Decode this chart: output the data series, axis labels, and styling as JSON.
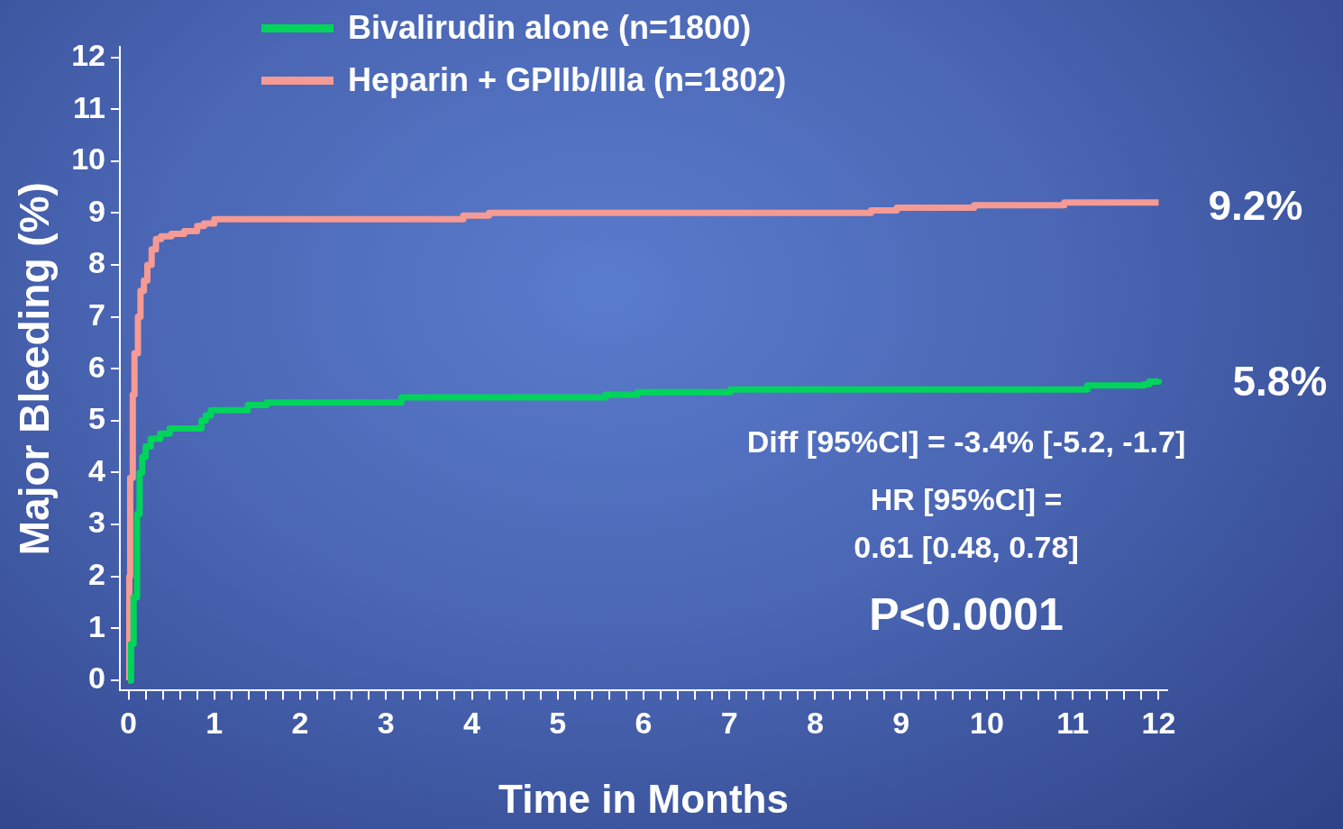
{
  "chart_data": {
    "type": "step",
    "xlabel": "Time in Months",
    "ylabel": "Major Bleeding (%)",
    "legend": "top left",
    "marker": "none",
    "line_style": "solid",
    "grid": false,
    "xlim": [
      -0.1,
      12.1
    ],
    "ylim": [
      -0.2,
      12.2
    ],
    "yticks": [
      0,
      1,
      2,
      3,
      4,
      5,
      6,
      7,
      8,
      9,
      10,
      11,
      12
    ],
    "xticks": [
      0,
      {
        "value": 0.2,
        "label": null
      },
      {
        "value": 0.4,
        "label": null
      },
      {
        "value": 0.6,
        "label": null
      },
      {
        "value": 0.8,
        "label": null
      },
      1,
      {
        "value": 1.2,
        "label": null
      },
      {
        "value": 1.4,
        "label": null
      },
      {
        "value": 1.6,
        "label": null
      },
      {
        "value": 1.8,
        "label": null
      },
      2,
      {
        "value": 2.2,
        "label": null
      },
      {
        "value": 2.4,
        "label": null
      },
      {
        "value": 2.6,
        "label": null
      },
      {
        "value": 2.8,
        "label": null
      },
      3,
      {
        "value": 3.2,
        "label": null
      },
      {
        "value": 3.4,
        "label": null
      },
      {
        "value": 3.6,
        "label": null
      },
      {
        "value": 3.8,
        "label": null
      },
      4,
      {
        "value": 4.2,
        "label": null
      },
      {
        "value": 4.4,
        "label": null
      },
      {
        "value": 4.6,
        "label": null
      },
      {
        "value": 4.8,
        "label": null
      },
      5,
      {
        "value": 5.2,
        "label": null
      },
      {
        "value": 5.4,
        "label": null
      },
      {
        "value": 5.6,
        "label": null
      },
      {
        "value": 5.8,
        "label": null
      },
      6,
      {
        "value": 6.2,
        "label": null
      },
      {
        "value": 6.4,
        "label": null
      },
      {
        "value": 6.6,
        "label": null
      },
      {
        "value": 6.8,
        "label": null
      },
      7,
      {
        "value": 7.2,
        "label": null
      },
      {
        "value": 7.4,
        "label": null
      },
      {
        "value": 7.6,
        "label": null
      },
      {
        "value": 7.8,
        "label": null
      },
      8,
      {
        "value": 8.2,
        "label": null
      },
      {
        "value": 8.4,
        "label": null
      },
      {
        "value": 8.6,
        "label": null
      },
      {
        "value": 8.8,
        "label": null
      },
      9,
      {
        "value": 9.2,
        "label": null
      },
      {
        "value": 9.4,
        "label": null
      },
      {
        "value": 9.6,
        "label": null
      },
      {
        "value": 9.8,
        "label": null
      },
      10,
      {
        "value": 10.2,
        "label": null
      },
      {
        "value": 10.4,
        "label": null
      },
      {
        "value": 10.6,
        "label": null
      },
      {
        "value": 10.8,
        "label": null
      },
      11,
      {
        "value": 11.2,
        "label": null
      },
      {
        "value": 11.4,
        "label": null
      },
      {
        "value": 11.6,
        "label": null
      },
      {
        "value": 11.8,
        "label": null
      },
      12
    ],
    "series": [
      {
        "name": "Bivalirudin alone (n=1800)",
        "color": "#00d45a",
        "x": [
          0,
          0.03,
          0.06,
          0.1,
          0.13,
          0.16,
          0.2,
          0.26,
          0.37,
          0.48,
          0.8,
          0.85,
          0.9,
          0.96,
          1.34,
          1.39,
          1.61,
          3.12,
          3.18,
          5.5,
          5.56,
          5.93,
          7.01,
          11.12,
          11.17,
          11.83,
          11.89,
          12
        ],
        "values": [
          0,
          0.7,
          1.6,
          3.2,
          4.0,
          4.3,
          4.5,
          4.65,
          4.75,
          4.85,
          4.85,
          5.0,
          5.1,
          5.2,
          5.2,
          5.3,
          5.35,
          5.35,
          5.45,
          5.45,
          5.5,
          5.55,
          5.6,
          5.6,
          5.68,
          5.7,
          5.75,
          5.8
        ]
      },
      {
        "name": "Heparin + GPIIb/IIIa (n=1802)",
        "color": "#f59a94",
        "x": [
          0,
          0.01,
          0.02,
          0.05,
          0.07,
          0.11,
          0.14,
          0.18,
          0.22,
          0.27,
          0.32,
          0.38,
          0.5,
          0.65,
          0.8,
          0.88,
          1.0,
          3.85,
          3.9,
          4.2,
          8.6,
          8.65,
          8.95,
          9.85,
          10.9,
          12
        ],
        "values": [
          0,
          2.0,
          3.9,
          5.5,
          6.3,
          7.0,
          7.5,
          7.7,
          8.0,
          8.3,
          8.5,
          8.55,
          8.6,
          8.65,
          8.75,
          8.8,
          8.88,
          8.88,
          8.95,
          9.0,
          9.0,
          9.05,
          9.1,
          9.15,
          9.2,
          9.2
        ]
      }
    ],
    "annotations": [
      {
        "text": "9.2%",
        "x": 12,
        "y": 9.2
      },
      {
        "text": "5.8%",
        "x": 12,
        "y": 5.8
      },
      "Diff [95%CI] = -3.4% [-5.2, -1.7]",
      "HR [95%CI] =",
      "0.61 [0.48, 0.78]",
      "P<0.0001"
    ]
  }
}
